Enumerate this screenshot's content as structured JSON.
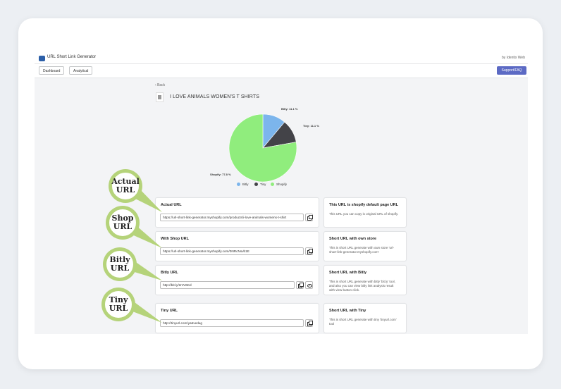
{
  "app": {
    "title": "URL Short Link Generator",
    "by": "by Identix Web"
  },
  "nav": {
    "dashboard": "Dashboard",
    "analytical": "Analytical",
    "support": "Support/FAQ"
  },
  "page": {
    "back": "Back",
    "product_title": "I LOVE ANIMALS WOMEN'S T SHIRTS"
  },
  "chart_data": {
    "type": "pie",
    "labels": [
      "Bitly",
      "Tiny",
      "Shopify"
    ],
    "values": [
      11.1,
      11.1,
      77.8
    ],
    "slice_labels": [
      "Bitly: 11.1 %",
      "Tiny: 11.1 %",
      "Shopify: 77.8 %"
    ],
    "colors": [
      "#7cb5ec",
      "#434348",
      "#90ed7d"
    ],
    "legend": "bottom"
  },
  "cards": [
    {
      "title": "Actual URL",
      "value": "https://url-short-link-generator.myshopify.com/products/i-love-animals-womens-t-shirt",
      "info_title": "This URL is shopify default page URL",
      "info_desc": "This URL you can copy is original URL of shopify."
    },
    {
      "title": "With Shop URL",
      "value": "https://url-short-link-generator.myshopify.com/0NRcNsvb1E",
      "info_title": "Short URL with own store",
      "info_desc": "This is short URL generate with own store 'url-short-link-generator.myshopify.com'"
    },
    {
      "title": "Bitly URL",
      "value": "http://bit.ly/2rJV6Kd",
      "info_title": "Short URL with Bitly",
      "info_desc": "This is short URL generate with bitly 'bit.ly' tool, and also you can view bitly link analysis result with view button click."
    },
    {
      "title": "Tiny URL",
      "value": "http://tinyurl.com/ya6vedug",
      "info_title": "Short URL with Tiny",
      "info_desc": "This is short URL generate with tiny 'tinyurl.com' tool"
    }
  ],
  "callouts": [
    {
      "line1": "Actual",
      "line2": "URL"
    },
    {
      "line1": "Shop",
      "line2": "URL"
    },
    {
      "line1": "Bitly",
      "line2": "URL"
    },
    {
      "line1": "Tiny",
      "line2": "URL"
    }
  ],
  "colors": {
    "accent": "#5c6ac4",
    "callout": "#b5d37a"
  }
}
